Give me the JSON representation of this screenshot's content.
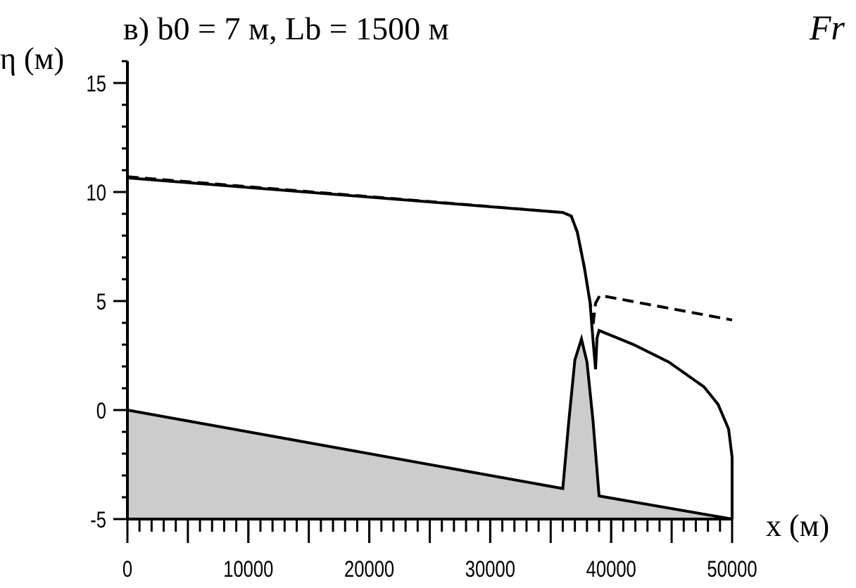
{
  "chart_data": {
    "type": "line",
    "title": "в) b0 = 7 м, Lb = 1500 м",
    "corner_label": "Fr",
    "y_label": "η (м)",
    "x_label": "x (м)",
    "xlim": [
      0,
      50000
    ],
    "xticks": [
      0,
      10000,
      20000,
      30000,
      40000,
      50000
    ],
    "ylim": [
      -5,
      16
    ],
    "yticks": [
      -5,
      0,
      5,
      10,
      15
    ],
    "x_minor_step": 1000,
    "y_minor_step": 1,
    "series": [
      {
        "fill": true,
        "color": "#cccccc",
        "style": "solid",
        "x": [
          0,
          36000,
          36500,
          37000,
          37545,
          38000,
          38500,
          39000,
          50000
        ],
        "values": [
          0,
          -3.6,
          -0.5,
          2.3,
          3.26,
          2.2,
          -0.5,
          -3.94,
          -5
        ]
      },
      {
        "fill": false,
        "color": "#000000",
        "style": "solid",
        "x": [
          0,
          36000,
          36700,
          37200,
          37780,
          38250,
          38530,
          38710,
          38830,
          39000,
          41860,
          44770,
          47680,
          48840,
          49710,
          50000,
          50000
        ],
        "values": [
          10.65,
          9.06,
          8.9,
          8.16,
          6.55,
          4.94,
          3.0,
          1.87,
          3.3,
          3.65,
          3.0,
          2.2,
          1.06,
          0.26,
          -0.87,
          -2.16,
          -5
        ]
      },
      {
        "fill": false,
        "color": "#000000",
        "style": "dashed",
        "x": [
          0,
          36000,
          36700,
          37200,
          37780,
          38360,
          38480,
          38710,
          39060,
          50000
        ],
        "values": [
          10.7,
          9.06,
          8.9,
          8.16,
          6.55,
          4.6,
          3.8,
          4.9,
          5.26,
          4.13
        ]
      }
    ]
  }
}
